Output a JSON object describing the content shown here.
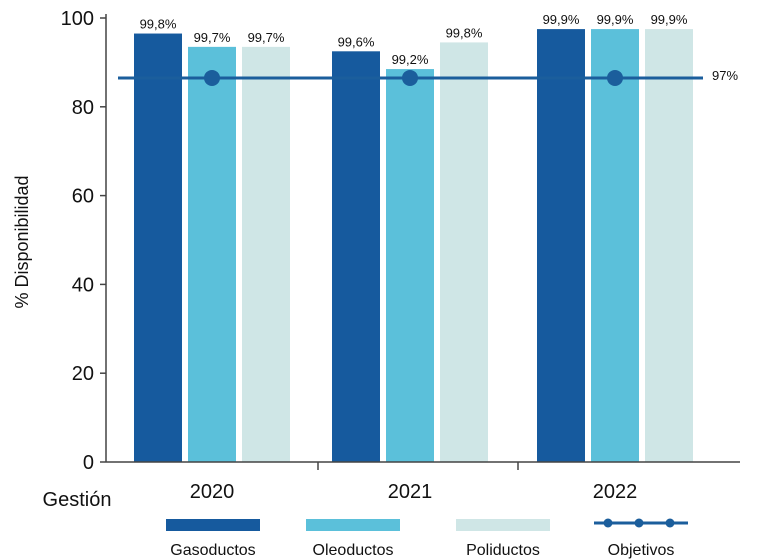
{
  "chart_data": {
    "type": "bar",
    "categories": [
      "2020",
      "2021",
      "2022"
    ],
    "series": [
      {
        "name": "Gasoductos",
        "color": "#165a9e",
        "values": [
          96.5,
          92.5,
          97.5
        ],
        "labels": [
          "99,8%",
          "99,6%",
          "99,9%"
        ]
      },
      {
        "name": "Oleoductos",
        "color": "#5bc0da",
        "values": [
          93.5,
          88.5,
          97.5
        ],
        "labels": [
          "99,7%",
          "99,2%",
          "99,9%"
        ]
      },
      {
        "name": "Poliductos",
        "color": "#cfe6e6",
        "values": [
          93.5,
          94.5,
          97.5
        ],
        "labels": [
          "99,7%",
          "99,8%",
          "99,9%"
        ]
      }
    ],
    "target": {
      "name": "Objetivos",
      "value": 86.5,
      "label": "97%",
      "color": "#1b5e9c"
    },
    "xlabel": "Gestión",
    "ylabel": "% Disponibilidad",
    "ylim": [
      0,
      100
    ],
    "yticks": [
      0,
      20,
      40,
      60,
      80,
      100
    ],
    "grid": false,
    "legend": "bottom"
  }
}
